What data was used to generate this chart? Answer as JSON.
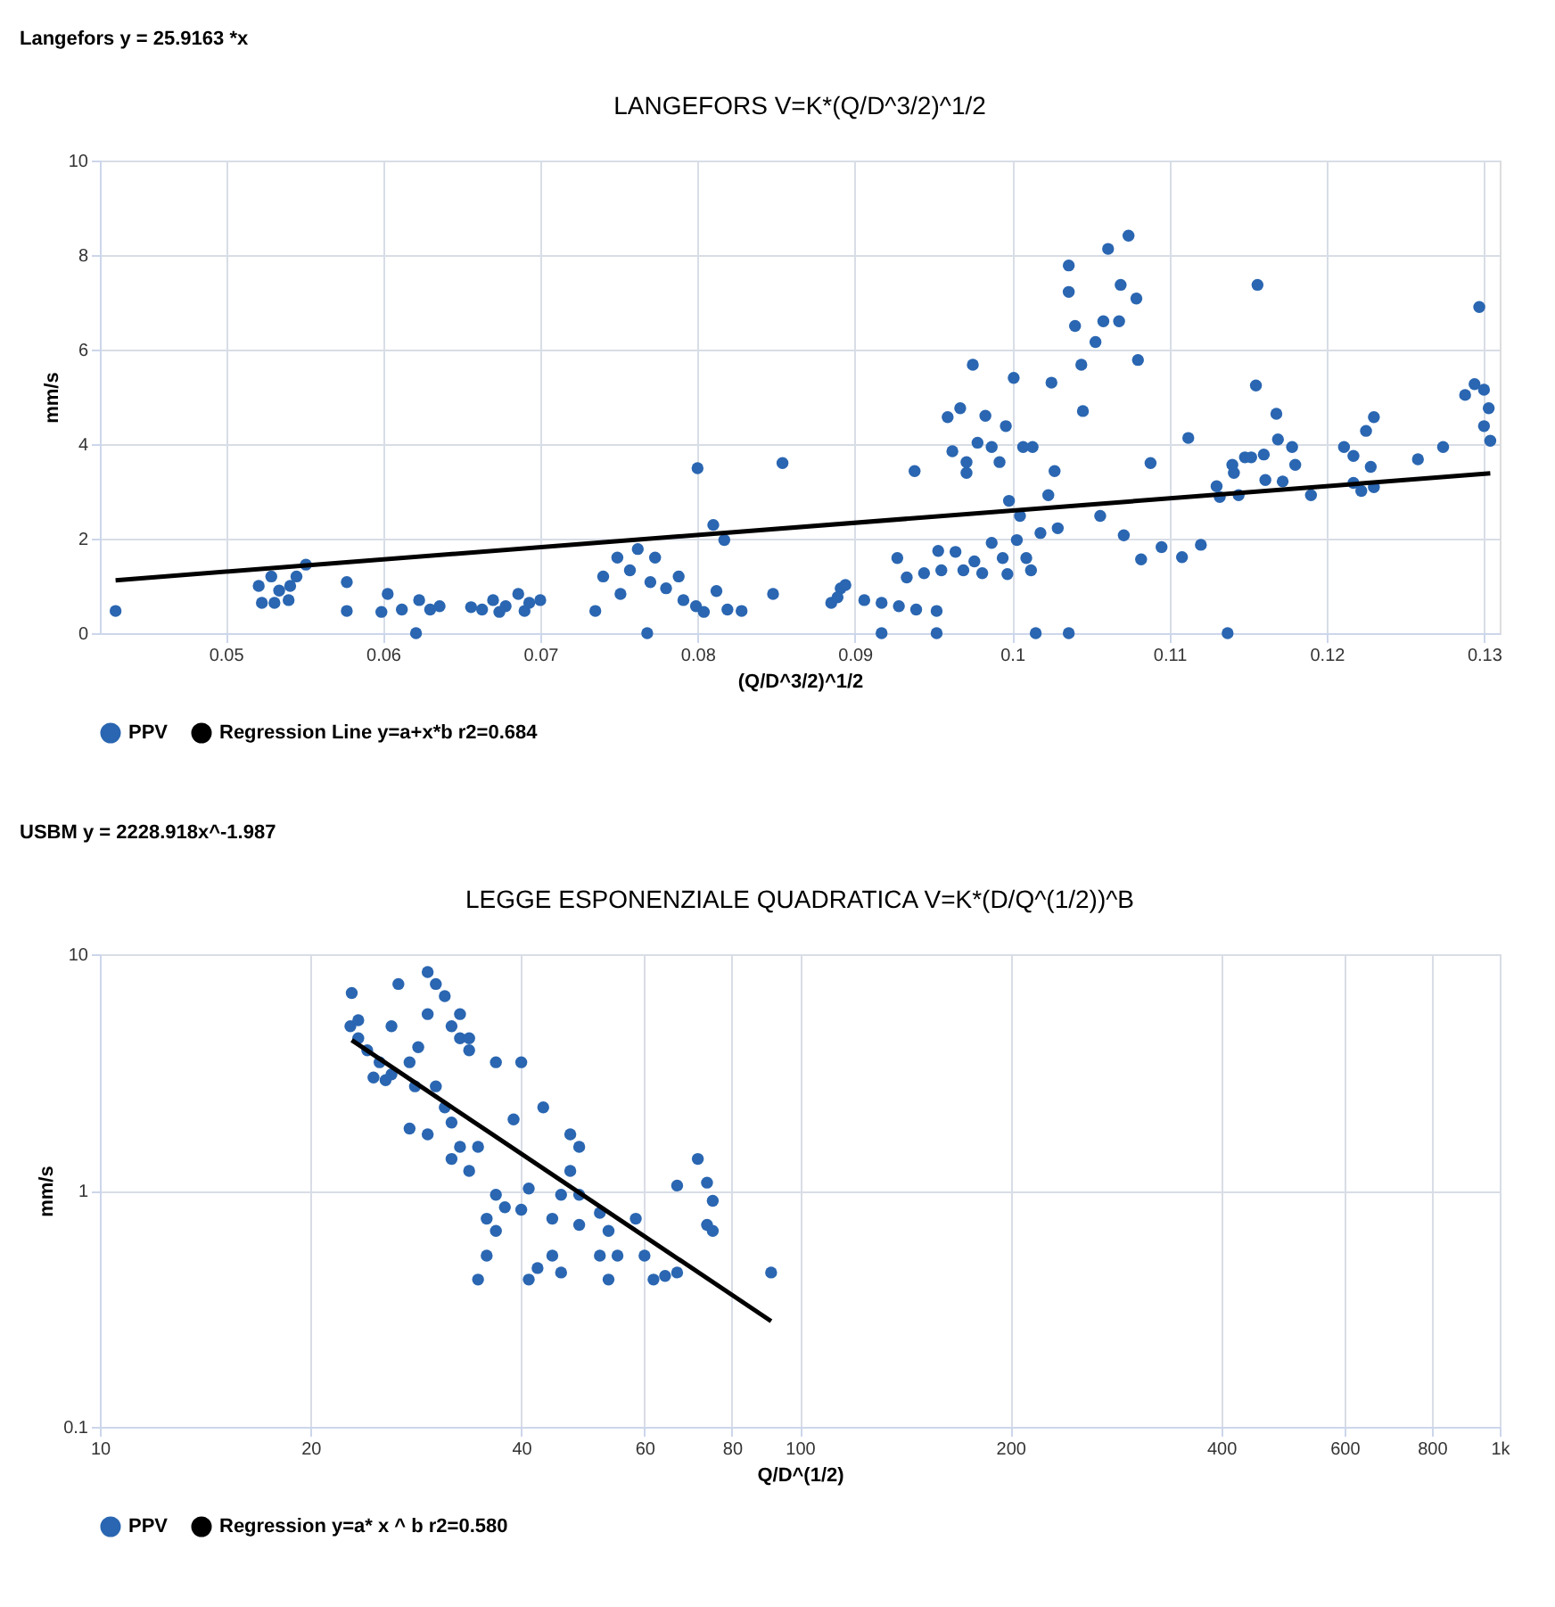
{
  "chart_data": [
    {
      "type": "scatter",
      "title": "LANGEFORS V=K*(Q/D^3/2)^1/2",
      "xlabel": "(Q/D^3/2)^1/2",
      "ylabel": "mm/s",
      "annotations": [
        "Langefors  y = 25.9163 *x"
      ],
      "xlim": [
        0.042,
        0.131
      ],
      "xticks": [
        0.05,
        0.06,
        0.07,
        0.08,
        0.09,
        0.1,
        0.11,
        0.12,
        0.13
      ],
      "ylim": [
        0,
        10
      ],
      "yticks": [
        0,
        2,
        4,
        6,
        8,
        10
      ],
      "grid": true,
      "legend": "bottom",
      "series": [
        {
          "name": "PPV",
          "color": "#2a66b1",
          "marker": "circle",
          "x": [
            0.043,
            0.0521,
            0.0523,
            0.0529,
            0.0534,
            0.054,
            0.0545,
            0.0551,
            0.0531,
            0.0541,
            0.0577,
            0.0577,
            0.0603,
            0.0599,
            0.0612,
            0.0621,
            0.0623,
            0.063,
            0.0636,
            0.0656,
            0.0663,
            0.067,
            0.0678,
            0.0686,
            0.0693,
            0.07,
            0.0674,
            0.069,
            0.0735,
            0.074,
            0.0749,
            0.0751,
            0.0757,
            0.0762,
            0.0768,
            0.0773,
            0.077,
            0.078,
            0.0788,
            0.0791,
            0.0799,
            0.08,
            0.081,
            0.0817,
            0.0812,
            0.0804,
            0.0819,
            0.0828,
            0.0848,
            0.0854,
            0.0885,
            0.0891,
            0.0894,
            0.0889,
            0.0906,
            0.0917,
            0.0917,
            0.0927,
            0.0928,
            0.0933,
            0.0938,
            0.0939,
            0.0944,
            0.0952,
            0.0952,
            0.0953,
            0.0955,
            0.0964,
            0.0959,
            0.0967,
            0.0962,
            0.0971,
            0.0971,
            0.0969,
            0.0975,
            0.0976,
            0.0981,
            0.0983,
            0.0978,
            0.0987,
            0.0987,
            0.0992,
            0.0994,
            0.0996,
            0.0997,
            0.0998,
            0.1001,
            0.1003,
            0.1005,
            0.1007,
            0.1009,
            0.1012,
            0.1013,
            0.1015,
            0.1018,
            0.1023,
            0.1025,
            0.1027,
            0.1029,
            0.1036,
            0.1036,
            0.1036,
            0.104,
            0.1044,
            0.1045,
            0.1053,
            0.1056,
            0.1058,
            0.1061,
            0.1068,
            0.1069,
            0.1071,
            0.1074,
            0.1079,
            0.108,
            0.1082,
            0.1088,
            0.1095,
            0.1108,
            0.1112,
            0.112,
            0.113,
            0.1132,
            0.1137,
            0.114,
            0.1141,
            0.1144,
            0.1148,
            0.1152,
            0.1155,
            0.1156,
            0.116,
            0.1161,
            0.1168,
            0.1169,
            0.1172,
            0.1178,
            0.118,
            0.119,
            0.1211,
            0.1217,
            0.1217,
            0.1222,
            0.1225,
            0.1228,
            0.123,
            0.123,
            0.1258,
            0.1274,
            0.1288,
            0.1294,
            0.1297,
            0.13,
            0.13,
            0.1303,
            0.1304
          ],
          "values": [
            0.47,
            1.0,
            0.64,
            1.2,
            0.9,
            0.7,
            1.2,
            1.45,
            0.64,
            1.0,
            1.08,
            0.47,
            0.83,
            0.45,
            0.5,
            0,
            0.7,
            0.5,
            0.57,
            0.55,
            0.5,
            0.7,
            0.57,
            0.83,
            0.64,
            0.7,
            0.45,
            0.47,
            0.47,
            1.2,
            1.6,
            0.83,
            1.33,
            1.78,
            0,
            1.6,
            1.08,
            0.95,
            1.2,
            0.7,
            0.57,
            3.49,
            2.29,
            1.97,
            0.89,
            0.45,
            0.5,
            0.47,
            0.83,
            3.6,
            0.64,
            0.95,
            1.02,
            0.76,
            0.7,
            0.64,
            0,
            1.59,
            0.57,
            1.18,
            3.43,
            0.5,
            1.27,
            0.47,
            0,
            1.74,
            1.33,
            1.72,
            4.57,
            4.76,
            3.85,
            3.39,
            3.62,
            1.33,
            5.68,
            1.52,
            1.27,
            4.6,
            4.03,
            3.94,
            1.91,
            3.62,
            1.59,
            4.38,
            1.25,
            2.8,
            5.4,
            1.97,
            2.48,
            3.94,
            1.59,
            1.33,
            3.94,
            0,
            2.12,
            2.92,
            5.3,
            3.43,
            2.22,
            0,
            7.22,
            7.78,
            6.5,
            5.68,
            4.7,
            6.16,
            2.48,
            6.6,
            8.13,
            6.6,
            7.37,
            2.07,
            8.41,
            7.08,
            5.78,
            1.56,
            3.6,
            1.82,
            1.61,
            4.13,
            1.87,
            3.11,
            2.88,
            0,
            3.56,
            3.39,
            2.92,
            3.72,
            3.72,
            5.24,
            7.37,
            3.78,
            3.24,
            4.64,
            4.1,
            3.21,
            3.94,
            3.56,
            2.92,
            3.94,
            3.75,
            3.18,
            3.01,
            4.28,
            3.52,
            4.57,
            3.09,
            3.68,
            3.94,
            5.04,
            5.27,
            6.9,
            5.15,
            4.38,
            4.76,
            4.07
          ]
        },
        {
          "name": "Regression Line y=a+x*b r2=0.684",
          "color": "#000000",
          "type": "line",
          "marker": "none",
          "line_style": "solid",
          "x": [
            0.043,
            0.1304
          ],
          "values": [
            1.12,
            3.38
          ]
        }
      ]
    },
    {
      "type": "scatter",
      "title": "LEGGE ESPONENZIALE QUADRATICA V=K*(D/Q^(1/2))^B",
      "xlabel": "Q/D^(1/2)",
      "ylabel": "mm/s",
      "annotations": [
        "USBM y = 2228.918x^-1.987"
      ],
      "log": "xy",
      "xlim": [
        10,
        1000
      ],
      "xticks": [
        10,
        20,
        40,
        60,
        80,
        100,
        200,
        400,
        600,
        800,
        {
          "value": 1000,
          "label": "1k"
        }
      ],
      "ylim": [
        0.1,
        10
      ],
      "yticks": [
        0.1,
        1,
        10
      ],
      "grid": true,
      "legend": "bottom",
      "series": [
        {
          "name": "PPV",
          "color": "#2a66b1",
          "marker": "circle",
          "x": [
            22.9,
            22.8,
            23.4,
            24.1,
            25.1,
            26.1,
            26.7,
            26.1,
            27.7,
            28.5,
            29.4,
            29.4,
            30.2,
            31.1,
            31.8,
            32.7,
            32.7,
            33.7,
            33.7,
            36.8,
            40.0,
            28.2,
            30.2,
            31.1,
            27.7,
            29.4,
            31.8,
            31.8,
            32.7,
            34.7,
            33.7,
            36.8,
            37.9,
            35.7,
            36.8,
            35.7,
            34.7,
            39.0,
            43.0,
            41.0,
            40.0,
            41.0,
            42.2,
            44.3,
            45.6,
            44.3,
            45.6,
            47.0,
            48.4,
            47.0,
            48.4,
            48.4,
            51.8,
            53.3,
            51.8,
            53.3,
            54.9,
            58.3,
            60,
            61.8,
            64.2,
            66.8,
            66.8,
            71.5,
            73.7,
            75.1,
            73.7,
            75.1,
            91.0,
            24.6,
            25.6,
            23.4
          ],
          "values": [
            6.85,
            4.96,
            4.41,
            3.92,
            3.49,
            4.96,
            7.48,
            3.1,
            3.49,
            4.04,
            8.41,
            5.58,
            7.48,
            6.65,
            4.96,
            5.58,
            4.41,
            3.92,
            4.41,
            3.49,
            3.49,
            2.76,
            2.76,
            2.25,
            1.83,
            1.73,
            1.94,
            1.36,
            1.53,
            1.53,
            1.21,
            0.96,
            0.85,
            0.76,
            0.675,
            0.53,
            0.42,
            2.0,
            2.25,
            1.02,
            0.83,
            0.42,
            0.47,
            0.53,
            0.45,
            0.76,
            0.96,
            1.73,
            1.53,
            1.21,
            0.96,
            0.716,
            0.805,
            0.675,
            0.53,
            0.42,
            0.53,
            0.76,
            0.53,
            0.42,
            0.435,
            0.45,
            1.05,
            1.36,
            1.08,
            0.905,
            0.716,
            0.675,
            0.45,
            3.01,
            2.93,
            5.26
          ]
        },
        {
          "name": "Regression y=a* x ^ b r2=0.580",
          "color": "#000000",
          "type": "line",
          "marker": "none",
          "line_style": "solid",
          "x": [
            22.9,
            91.0
          ],
          "values": [
            4.33,
            0.28
          ]
        }
      ]
    }
  ]
}
